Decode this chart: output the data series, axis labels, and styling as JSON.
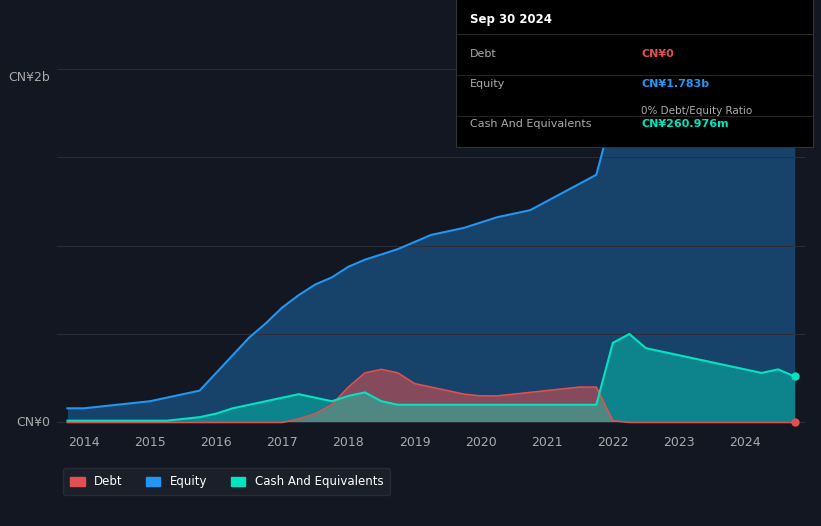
{
  "bg_color": "#131722",
  "plot_bg_color": "#131722",
  "grid_color": "#2a2e39",
  "title_text": "Sep 30 2024",
  "ylabel_top": "CN¥2b",
  "ylabel_bottom": "CN¥0",
  "x_ticks": [
    2014,
    2015,
    2016,
    2017,
    2018,
    2019,
    2020,
    2021,
    2022,
    2023,
    2024
  ],
  "debt_color": "#e05050",
  "equity_color": "#2196f3",
  "cash_color": "#00e5c0",
  "legend_bg": "#1e222d",
  "legend_border": "#2a2e39",
  "tooltip_bg": "#000000",
  "tooltip_border": "#2a2e39",
  "annotation": {
    "date": "Sep 30 2024",
    "debt_label": "Debt",
    "debt_value": "CN¥0",
    "debt_color": "#e05050",
    "equity_label": "Equity",
    "equity_value": "CN¥1.783b",
    "equity_color": "#2196f3",
    "ratio_text": "0% Debt/Equity Ratio",
    "ratio_bold": "0%",
    "cash_label": "Cash And Equivalents",
    "cash_value": "CN¥260.976m",
    "cash_color": "#00e5c0"
  },
  "years": [
    2013.75,
    2014.0,
    2014.25,
    2014.5,
    2014.75,
    2015.0,
    2015.25,
    2015.5,
    2015.75,
    2016.0,
    2016.25,
    2016.5,
    2016.75,
    2017.0,
    2017.25,
    2017.5,
    2017.75,
    2018.0,
    2018.25,
    2018.5,
    2018.75,
    2019.0,
    2019.25,
    2019.5,
    2019.75,
    2020.0,
    2020.25,
    2020.5,
    2020.75,
    2021.0,
    2021.25,
    2021.5,
    2021.75,
    2022.0,
    2022.25,
    2022.5,
    2022.75,
    2023.0,
    2023.25,
    2023.5,
    2023.75,
    2024.0,
    2024.25,
    2024.5,
    2024.75
  ],
  "equity": [
    0.08,
    0.08,
    0.09,
    0.1,
    0.11,
    0.12,
    0.14,
    0.16,
    0.18,
    0.28,
    0.38,
    0.48,
    0.56,
    0.65,
    0.72,
    0.78,
    0.82,
    0.88,
    0.92,
    0.95,
    0.98,
    1.02,
    1.06,
    1.08,
    1.1,
    1.13,
    1.16,
    1.18,
    1.2,
    1.25,
    1.3,
    1.35,
    1.4,
    1.75,
    1.78,
    1.8,
    1.82,
    1.85,
    1.88,
    1.84,
    1.82,
    1.82,
    1.8,
    1.8,
    1.78
  ],
  "debt": [
    0.0,
    0.0,
    0.0,
    0.0,
    0.0,
    0.0,
    0.0,
    0.0,
    0.0,
    0.0,
    0.0,
    0.0,
    0.0,
    0.0,
    0.02,
    0.05,
    0.1,
    0.2,
    0.28,
    0.3,
    0.28,
    0.22,
    0.2,
    0.18,
    0.16,
    0.15,
    0.15,
    0.16,
    0.17,
    0.18,
    0.19,
    0.2,
    0.2,
    0.01,
    0.0,
    0.0,
    0.0,
    0.0,
    0.0,
    0.0,
    0.0,
    0.0,
    0.0,
    0.0,
    0.0
  ],
  "cash": [
    0.01,
    0.01,
    0.01,
    0.01,
    0.01,
    0.01,
    0.01,
    0.02,
    0.03,
    0.05,
    0.08,
    0.1,
    0.12,
    0.14,
    0.16,
    0.14,
    0.12,
    0.15,
    0.17,
    0.12,
    0.1,
    0.1,
    0.1,
    0.1,
    0.1,
    0.1,
    0.1,
    0.1,
    0.1,
    0.1,
    0.1,
    0.1,
    0.1,
    0.45,
    0.5,
    0.42,
    0.4,
    0.38,
    0.36,
    0.34,
    0.32,
    0.3,
    0.28,
    0.3,
    0.26
  ]
}
